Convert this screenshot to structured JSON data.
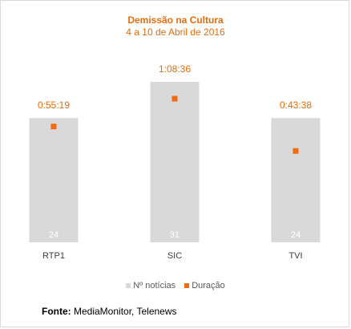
{
  "chart_data": {
    "type": "bar",
    "title": "Demissão na Cultura",
    "subtitle": "4 a 10 de Abril de 2016",
    "categories": [
      "RTP1",
      "SIC",
      "TVI"
    ],
    "series": [
      {
        "name": "Nº notícias",
        "type": "bar",
        "color": "#d9d9d9",
        "values": [
          24,
          31,
          24
        ],
        "labels": [
          "24",
          "31",
          "24"
        ]
      },
      {
        "name": "Duração",
        "type": "marker",
        "color": "#f26b0f",
        "values": [
          55.32,
          68.6,
          43.63
        ],
        "labels": [
          "0:55:19",
          "1:08:36",
          "0:43:38"
        ]
      }
    ],
    "legend_position": "bottom",
    "grid": false
  },
  "source": {
    "label": "Fonte:",
    "text": "MediaMonitor, Telenews"
  }
}
